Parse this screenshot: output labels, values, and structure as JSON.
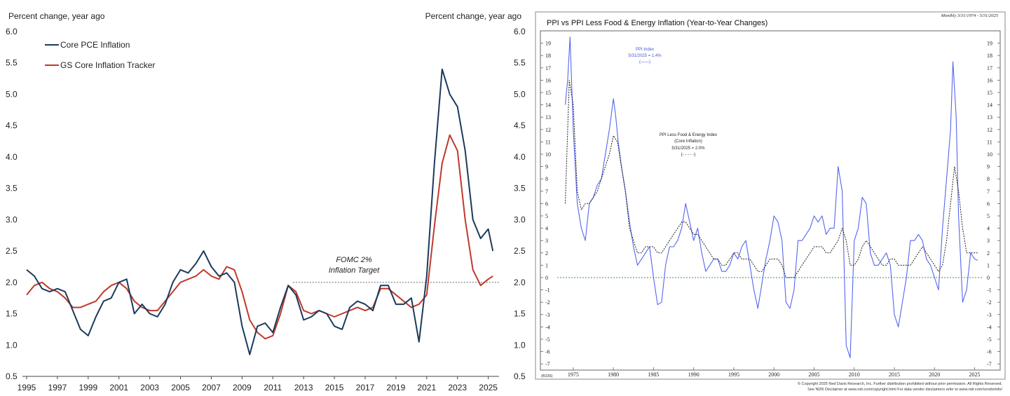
{
  "chart_data": [
    {
      "type": "line",
      "ylabel_left": "Percent change, year ago",
      "ylabel_right": "Percent change, year ago",
      "xlim": [
        1995,
        2025.7
      ],
      "ylim": [
        0.5,
        6.0
      ],
      "yticks": [
        "6.0",
        "5.5",
        "5.0",
        "4.5",
        "4.0",
        "3.5",
        "3.0",
        "2.5",
        "2.0",
        "1.5",
        "1.0",
        "0.5"
      ],
      "xticks": [
        "1995",
        "1997",
        "1999",
        "2001",
        "2003",
        "2005",
        "2007",
        "2009",
        "2011",
        "2013",
        "2015",
        "2017",
        "2019",
        "2021",
        "2023",
        "2025"
      ],
      "reference_line": {
        "y": 2.0,
        "from_x": 2012.3,
        "label_line1": "FOMC 2%",
        "label_line2": "Inflation Target"
      },
      "grid": false,
      "legend_position": "top-left",
      "series": [
        {
          "name": "Core PCE Inflation",
          "color": "#1b3a5c",
          "x": [
            1995.0,
            1995.5,
            1996.0,
            1996.5,
            1997.0,
            1997.5,
            1998.0,
            1998.5,
            1999.0,
            1999.5,
            2000.0,
            2000.5,
            2001.0,
            2001.5,
            2002.0,
            2002.5,
            2003.0,
            2003.5,
            2004.0,
            2004.5,
            2005.0,
            2005.5,
            2006.0,
            2006.5,
            2007.0,
            2007.5,
            2008.0,
            2008.5,
            2009.0,
            2009.5,
            2010.0,
            2010.5,
            2011.0,
            2011.5,
            2012.0,
            2012.5,
            2013.0,
            2013.5,
            2014.0,
            2014.5,
            2015.0,
            2015.5,
            2016.0,
            2016.5,
            2017.0,
            2017.5,
            2018.0,
            2018.5,
            2019.0,
            2019.5,
            2020.0,
            2020.5,
            2021.0,
            2021.5,
            2022.0,
            2022.5,
            2023.0,
            2023.5,
            2024.0,
            2024.5,
            2025.0,
            2025.3
          ],
          "y": [
            2.2,
            2.1,
            1.9,
            1.85,
            1.9,
            1.85,
            1.55,
            1.25,
            1.15,
            1.45,
            1.7,
            1.75,
            2.0,
            2.05,
            1.5,
            1.65,
            1.5,
            1.45,
            1.65,
            2.0,
            2.2,
            2.15,
            2.3,
            2.5,
            2.25,
            2.1,
            2.15,
            2.0,
            1.3,
            0.85,
            1.3,
            1.35,
            1.2,
            1.6,
            1.95,
            1.8,
            1.4,
            1.45,
            1.55,
            1.5,
            1.3,
            1.25,
            1.6,
            1.7,
            1.65,
            1.55,
            1.95,
            1.95,
            1.65,
            1.65,
            1.75,
            1.05,
            2.1,
            3.9,
            5.4,
            5.0,
            4.8,
            4.1,
            3.0,
            2.7,
            2.85,
            2.5
          ]
        },
        {
          "name": "GS Core Inflation Tracker",
          "color": "#c0392b",
          "x": [
            1995.0,
            1995.5,
            1996.0,
            1996.5,
            1997.0,
            1997.5,
            1998.0,
            1998.5,
            1999.0,
            1999.5,
            2000.0,
            2000.5,
            2001.0,
            2001.5,
            2002.0,
            2002.5,
            2003.0,
            2003.5,
            2004.0,
            2004.5,
            2005.0,
            2005.5,
            2006.0,
            2006.5,
            2007.0,
            2007.5,
            2008.0,
            2008.5,
            2009.0,
            2009.5,
            2010.0,
            2010.5,
            2011.0,
            2011.5,
            2012.0,
            2012.5,
            2013.0,
            2013.5,
            2014.0,
            2014.5,
            2015.0,
            2015.5,
            2016.0,
            2016.5,
            2017.0,
            2017.5,
            2018.0,
            2018.5,
            2019.0,
            2019.5,
            2020.0,
            2020.5,
            2021.0,
            2021.5,
            2022.0,
            2022.5,
            2023.0,
            2023.5,
            2024.0,
            2024.5,
            2025.0,
            2025.3
          ],
          "y": [
            1.8,
            1.95,
            2.0,
            1.9,
            1.85,
            1.75,
            1.6,
            1.6,
            1.65,
            1.7,
            1.85,
            1.95,
            2.0,
            1.9,
            1.7,
            1.6,
            1.55,
            1.55,
            1.7,
            1.85,
            2.0,
            2.05,
            2.1,
            2.2,
            2.1,
            2.05,
            2.25,
            2.2,
            1.85,
            1.4,
            1.2,
            1.1,
            1.15,
            1.5,
            1.95,
            1.85,
            1.55,
            1.5,
            1.55,
            1.5,
            1.45,
            1.5,
            1.55,
            1.6,
            1.55,
            1.6,
            1.9,
            1.9,
            1.8,
            1.7,
            1.6,
            1.65,
            1.8,
            2.9,
            3.9,
            4.35,
            4.1,
            3.0,
            2.2,
            1.95,
            2.05,
            2.1
          ]
        }
      ]
    },
    {
      "type": "line",
      "title": "PPI vs PPI Less Food & Energy Inflation (Year-to-Year Changes)",
      "subtitle": "Monthly 3/31/1974 - 5/31/2025",
      "xlim": [
        1973,
        2026
      ],
      "ylim": [
        -7.5,
        20
      ],
      "yticks": [
        "19",
        "18",
        "17",
        "16",
        "15",
        "14",
        "13",
        "12",
        "11",
        "10",
        "9",
        "8",
        "7",
        "6",
        "5",
        "4",
        "3",
        "2",
        "1",
        "0",
        "-1",
        "-2",
        "-3",
        "-4",
        "-5",
        "-6",
        "-7"
      ],
      "xticks": [
        "1975",
        "1980",
        "1985",
        "1990",
        "1995",
        "2000",
        "2005",
        "2010",
        "2015",
        "2020",
        "2025"
      ],
      "reference_line": {
        "y": 0
      },
      "annotations": [
        {
          "lines": [
            "PPI Index",
            "5/31/2025 = 1.4%",
            "(——)"
          ],
          "color": "#4a55d6"
        },
        {
          "lines": [
            "PPI Less Food & Energy Index",
            "(Core Inflation)",
            "5/31/2025 = 2.0%",
            "(- - - - -)"
          ],
          "color": "#222222"
        }
      ],
      "footer_left": "(B336)",
      "footer_lines": [
        "© Copyright 2025 Ned Davis Research, Inc.  Further distribution prohibited without prior permission.  All Rights Reserved.",
        "See NDR Disclaimer at www.ndr.com/copyright.html  For data vendor disclaimers refer to www.ndr.com/vendorinfo/"
      ],
      "series": [
        {
          "name": "PPI Index",
          "color": "#5566ee",
          "x": [
            1974.0,
            1974.3,
            1974.6,
            1975.0,
            1975.5,
            1976.0,
            1976.5,
            1977.0,
            1977.5,
            1978.0,
            1978.5,
            1979.0,
            1979.5,
            1980.0,
            1980.3,
            1980.6,
            1981.0,
            1981.5,
            1982.0,
            1982.5,
            1983.0,
            1983.5,
            1984.0,
            1984.5,
            1985.0,
            1985.5,
            1986.0,
            1986.5,
            1987.0,
            1987.5,
            1988.0,
            1988.5,
            1989.0,
            1989.5,
            1990.0,
            1990.5,
            1991.0,
            1991.5,
            1992.0,
            1992.5,
            1993.0,
            1993.5,
            1994.0,
            1994.5,
            1995.0,
            1995.5,
            1996.0,
            1996.5,
            1997.0,
            1997.5,
            1998.0,
            1998.5,
            1999.0,
            1999.5,
            2000.0,
            2000.5,
            2001.0,
            2001.5,
            2002.0,
            2002.5,
            2003.0,
            2003.5,
            2004.0,
            2004.5,
            2005.0,
            2005.5,
            2006.0,
            2006.5,
            2007.0,
            2007.5,
            2008.0,
            2008.5,
            2009.0,
            2009.5,
            2010.0,
            2010.5,
            2011.0,
            2011.5,
            2012.0,
            2012.5,
            2013.0,
            2013.5,
            2014.0,
            2014.5,
            2015.0,
            2015.5,
            2016.0,
            2016.5,
            2017.0,
            2017.5,
            2018.0,
            2018.5,
            2019.0,
            2019.5,
            2020.0,
            2020.5,
            2021.0,
            2021.5,
            2022.0,
            2022.3,
            2022.7,
            2023.0,
            2023.5,
            2024.0,
            2024.5,
            2025.0,
            2025.4
          ],
          "y": [
            14,
            16,
            19.5,
            12,
            6,
            4,
            3,
            6,
            6.5,
            7.5,
            8,
            10,
            12,
            14.5,
            13,
            11,
            9,
            7,
            4.5,
            2.5,
            1,
            1.5,
            2,
            2.5,
            0,
            -2.2,
            -2,
            1,
            2.5,
            2.5,
            3,
            4,
            6,
            4.5,
            3,
            4,
            2,
            0.5,
            1,
            1.5,
            1.5,
            0.5,
            0.5,
            1,
            2,
            1.5,
            2.5,
            3,
            1,
            -1,
            -2.5,
            -0.5,
            1.5,
            3,
            5,
            4.5,
            3,
            -2,
            -2.5,
            -1,
            3,
            3,
            3.5,
            4,
            5,
            4.5,
            5,
            3.5,
            4,
            4,
            9,
            7,
            -5.5,
            -6.5,
            3,
            4,
            6.5,
            6,
            2,
            1,
            1,
            1.5,
            2,
            1,
            -3,
            -4,
            -2,
            0,
            3,
            3,
            3.5,
            3,
            1.5,
            1,
            0,
            -1,
            4,
            8,
            12,
            17.5,
            13,
            5,
            -2,
            -1,
            2,
            1.5,
            1.4
          ]
        },
        {
          "name": "PPI Less Food & Energy Index",
          "color": "#222222",
          "x": [
            1974.0,
            1974.5,
            1975.0,
            1975.5,
            1976.0,
            1976.5,
            1977.0,
            1977.5,
            1978.0,
            1978.5,
            1979.0,
            1979.5,
            1980.0,
            1980.5,
            1981.0,
            1981.5,
            1982.0,
            1982.5,
            1983.0,
            1983.5,
            1984.0,
            1984.5,
            1985.0,
            1985.5,
            1986.0,
            1986.5,
            1987.0,
            1987.5,
            1988.0,
            1988.5,
            1989.0,
            1989.5,
            1990.0,
            1990.5,
            1991.0,
            1991.5,
            1992.0,
            1992.5,
            1993.0,
            1993.5,
            1994.0,
            1994.5,
            1995.0,
            1995.5,
            1996.0,
            1996.5,
            1997.0,
            1997.5,
            1998.0,
            1998.5,
            1999.0,
            1999.5,
            2000.0,
            2000.5,
            2001.0,
            2001.5,
            2002.0,
            2002.5,
            2003.0,
            2003.5,
            2004.0,
            2004.5,
            2005.0,
            2005.5,
            2006.0,
            2006.5,
            2007.0,
            2007.5,
            2008.0,
            2008.5,
            2009.0,
            2009.5,
            2010.0,
            2010.5,
            2011.0,
            2011.5,
            2012.0,
            2012.5,
            2013.0,
            2013.5,
            2014.0,
            2014.5,
            2015.0,
            2015.5,
            2016.0,
            2016.5,
            2017.0,
            2017.5,
            2018.0,
            2018.5,
            2019.0,
            2019.5,
            2020.0,
            2020.5,
            2021.0,
            2021.5,
            2022.0,
            2022.5,
            2023.0,
            2023.5,
            2024.0,
            2024.5,
            2025.0,
            2025.4
          ],
          "y": [
            6,
            16,
            14,
            7,
            5.5,
            6,
            6,
            6.5,
            7,
            8,
            9,
            10,
            11.5,
            11,
            9,
            7,
            4,
            3,
            2,
            2,
            2.5,
            2.5,
            2.5,
            2,
            2,
            2.5,
            3,
            3.5,
            4,
            4.5,
            4.5,
            4,
            3.5,
            3.5,
            3,
            2.5,
            2,
            1.5,
            1.5,
            1,
            1,
            1.5,
            2,
            2,
            1.5,
            1.5,
            1.5,
            1,
            0.5,
            0.5,
            1,
            1.5,
            1.5,
            1.5,
            1,
            0,
            0,
            0,
            0.5,
            1,
            1.5,
            2,
            2.5,
            2.5,
            2.5,
            2,
            2,
            2.5,
            3,
            4,
            3,
            1,
            1,
            1.5,
            2.5,
            3,
            2.5,
            2,
            1.5,
            1,
            1,
            1.5,
            1.5,
            1,
            1,
            1,
            1,
            1.5,
            2,
            2.5,
            2,
            1.5,
            1,
            0.5,
            1,
            3,
            6,
            9,
            7,
            4,
            2,
            2,
            2,
            2
          ]
        }
      ]
    }
  ]
}
